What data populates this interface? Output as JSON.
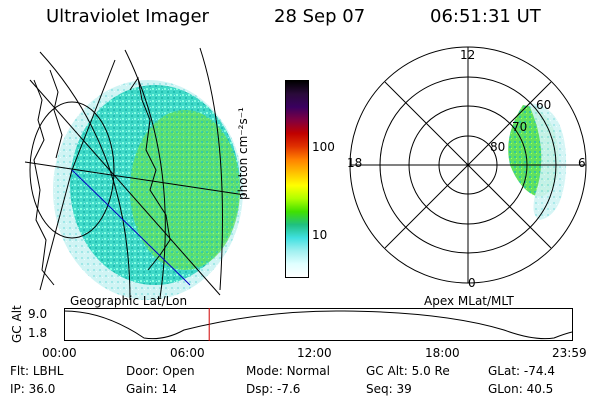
{
  "header": {
    "instrument": "Ultraviolet Imager",
    "date": "28 Sep 07",
    "time": "06:51:31 UT"
  },
  "colorbar": {
    "label": "photon cm⁻²s⁻¹",
    "ticks": [
      "100",
      "10"
    ],
    "colors": [
      "#000000",
      "#2a0a3a",
      "#3a0060",
      "#800040",
      "#c00000",
      "#e03000",
      "#ff8000",
      "#ffc000",
      "#ffff00",
      "#b0ff00",
      "#40e000",
      "#20c080",
      "#40e0e0",
      "#a0f0f0",
      "#e0ffff",
      "#ffffff"
    ]
  },
  "left_panel": {
    "caption": "Geographic Lat/Lon"
  },
  "right_panel": {
    "caption": "Apex MLat/MLT",
    "mlt_labels": {
      "top": "12",
      "left": "18",
      "right": "6",
      "bottom": "0"
    },
    "lat_labels": [
      "60",
      "70",
      "80"
    ]
  },
  "altitude_strip": {
    "ylabel": "GC Alt",
    "y_ticks": [
      "9.0",
      "1.8"
    ],
    "x_ticks": [
      "00:00",
      "06:00",
      "12:00",
      "18:00",
      "23:59"
    ],
    "current_time_hours": 6.86
  },
  "info": {
    "row1": [
      {
        "label": "Flt:",
        "value": "LBHL"
      },
      {
        "label": "Door:",
        "value": "Open"
      },
      {
        "label": "Mode:",
        "value": "Normal"
      },
      {
        "label": "GC Alt:",
        "value": "5.0 Re"
      },
      {
        "label": "GLat:",
        "value": "-74.4"
      }
    ],
    "row2": [
      {
        "label": "IP:",
        "value": "36.0"
      },
      {
        "label": "Gain:",
        "value": "14"
      },
      {
        "label": "Dsp:",
        "value": "-7.6"
      },
      {
        "label": "Seq:",
        "value": "39"
      },
      {
        "label": "GLon:",
        "value": "40.5"
      }
    ]
  }
}
